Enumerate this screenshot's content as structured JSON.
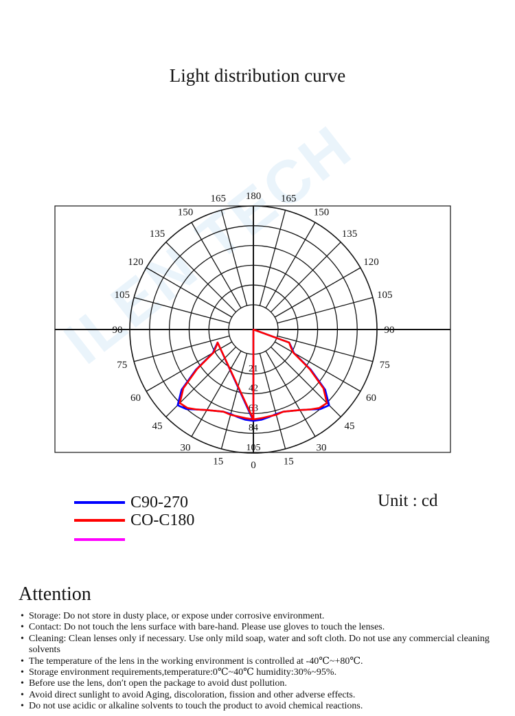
{
  "title": "Light distribution curve",
  "unit_label": "Unit : cd",
  "legend": [
    {
      "label": "C90-270",
      "color": "#0000ff"
    },
    {
      "label": "CO-C180",
      "color": "#ff0000"
    },
    {
      "label": "",
      "color": "#ff00ff"
    }
  ],
  "attention": {
    "title": "Attention",
    "items": [
      "Storage: Do not store in dusty place, or expose under corrosive environment.",
      "Contact: Do not touch the lens surface with bare-hand. Please use gloves to touch the lenses.",
      "Cleaning: Clean lenses only if necessary. Use only mild soap, water and soft cloth. Do not use any commercial cleaning solvents",
      "The temperature of the lens in the working environment is controlled at -40℃~+80℃.",
      "Storage environment requirements,temperature:0℃~40℃ humidity:30%~95%.",
      "Before use the lens, don′t open the package to avoid dust pollution.",
      "Avoid direct sunlight to avoid Aging, discoloration, fission and other adverse effects.",
      "Do not use acidic or alkaline solvents to touch the product to avoid  chemical reactions."
    ]
  },
  "chart_data": {
    "type": "polar",
    "title": "Light distribution curve",
    "unit": "cd",
    "angle_labels_left": [
      "0",
      "15",
      "30",
      "45",
      "60",
      "75",
      "90",
      "105",
      "120",
      "135",
      "150",
      "165",
      "180"
    ],
    "angle_labels_right": [
      "15",
      "30",
      "45",
      "60",
      "75",
      "90",
      "105",
      "120",
      "135",
      "150",
      "165"
    ],
    "radial_ticks": [
      "21",
      "42",
      "63",
      "84",
      "105"
    ],
    "rmax": 126,
    "series": [
      {
        "name": "C90-270",
        "color": "#0000ff",
        "points": [
          [
            0,
            85
          ],
          [
            5,
            84
          ],
          [
            10,
            82
          ],
          [
            15,
            80
          ],
          [
            20,
            80
          ],
          [
            25,
            83
          ],
          [
            30,
            87
          ],
          [
            35,
            93
          ],
          [
            40,
            101
          ],
          [
            45,
            105
          ],
          [
            50,
            88
          ],
          [
            55,
            58
          ],
          [
            60,
            28
          ],
          [
            65,
            22
          ],
          [
            70,
            17
          ]
        ]
      },
      {
        "name": "CO-C180",
        "color": "#ff0000",
        "points": [
          [
            0,
            83
          ],
          [
            5,
            82
          ],
          [
            10,
            81
          ],
          [
            15,
            81
          ],
          [
            20,
            80
          ],
          [
            25,
            83
          ],
          [
            30,
            87
          ],
          [
            35,
            93
          ],
          [
            40,
            99
          ],
          [
            45,
            101
          ],
          [
            50,
            85
          ],
          [
            55,
            56
          ],
          [
            60,
            27
          ],
          [
            65,
            21
          ],
          [
            70,
            17
          ]
        ]
      }
    ]
  }
}
